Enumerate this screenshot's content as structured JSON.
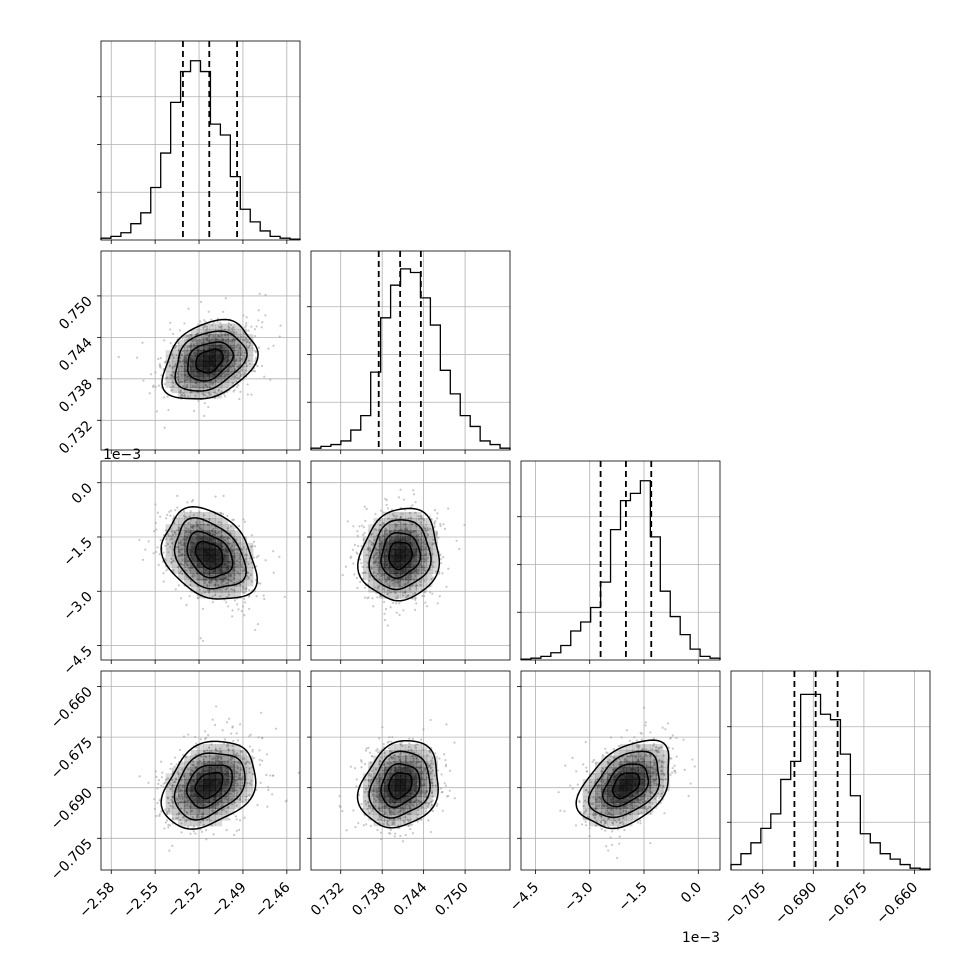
{
  "figure": {
    "background": "#ffffff"
  },
  "chart_data": {
    "type": "corner",
    "params": [
      {
        "ticks": [
          -2.58,
          -2.55,
          -2.52,
          -2.49,
          -2.46
        ],
        "tick_labels": [
          "−2.58",
          "−2.55",
          "−2.52",
          "−2.49",
          "−2.46"
        ],
        "range": [
          -2.587,
          -2.451
        ],
        "quantiles": [
          -2.531,
          -2.513,
          -2.494
        ],
        "mean": -2.513,
        "sd": 0.0155,
        "offset_label": ""
      },
      {
        "ticks": [
          0.732,
          0.738,
          0.744,
          0.75
        ],
        "tick_labels": [
          "0.732",
          "0.738",
          "0.744",
          "0.750"
        ],
        "range": [
          0.7277,
          0.7565
        ],
        "quantiles": [
          0.7375,
          0.7406,
          0.7436
        ],
        "mean": 0.7406,
        "sd": 0.0028,
        "offset_label": ""
      },
      {
        "ticks": [
          -4.5,
          -3.0,
          -1.5,
          0.0
        ],
        "tick_labels": [
          "−4.5",
          "−3.0",
          "−1.5",
          "0.0"
        ],
        "range": [
          -4.9,
          0.6
        ],
        "quantiles": [
          -2.7,
          -2.0,
          -1.3
        ],
        "mean": -2.0,
        "sd": 0.62,
        "offset_label": "1e−3"
      },
      {
        "ticks": [
          -0.705,
          -0.69,
          -0.675,
          -0.66
        ],
        "tick_labels": [
          "−0.705",
          "−0.690",
          "−0.675",
          "−0.660"
        ],
        "range": [
          -0.7144,
          -0.6554
        ],
        "quantiles": [
          -0.6956,
          -0.6893,
          -0.6828
        ],
        "mean": -0.6892,
        "sd": 0.0063,
        "offset_label": ""
      }
    ],
    "histograms": [
      [
        0.01,
        0.02,
        0.04,
        0.09,
        0.15,
        0.29,
        0.48,
        0.76,
        0.93,
        0.99,
        0.93,
        0.64,
        0.58,
        0.35,
        0.17,
        0.1,
        0.05,
        0.02,
        0.01,
        0.005
      ],
      [
        0.01,
        0.02,
        0.03,
        0.05,
        0.11,
        0.19,
        0.43,
        0.73,
        0.91,
        1.0,
        0.98,
        0.84,
        0.69,
        0.44,
        0.31,
        0.19,
        0.13,
        0.05,
        0.03,
        0.01
      ],
      [
        0.005,
        0.01,
        0.02,
        0.04,
        0.08,
        0.16,
        0.21,
        0.29,
        0.43,
        0.72,
        0.88,
        0.92,
        0.99,
        0.68,
        0.38,
        0.24,
        0.14,
        0.06,
        0.02,
        0.01
      ],
      [
        0.03,
        0.09,
        0.15,
        0.23,
        0.31,
        0.5,
        0.6,
        0.97,
        0.97,
        0.86,
        0.83,
        0.64,
        0.41,
        0.2,
        0.15,
        0.09,
        0.06,
        0.03,
        0.01,
        0.005
      ]
    ],
    "correlations": [
      {
        "pair": [
          0,
          1
        ],
        "rho": 0.3
      },
      {
        "pair": [
          0,
          2
        ],
        "rho": -0.3
      },
      {
        "pair": [
          1,
          2
        ],
        "rho": 0.1
      },
      {
        "pair": [
          0,
          3
        ],
        "rho": 0.3
      },
      {
        "pair": [
          1,
          3
        ],
        "rho": 0.2
      },
      {
        "pair": [
          2,
          3
        ],
        "rho": 0.4
      }
    ],
    "grid": true,
    "colors": {
      "line": "#000000",
      "grid": "#b0b0b0",
      "scatter": "#9a9a9a",
      "density": "#000000"
    }
  }
}
